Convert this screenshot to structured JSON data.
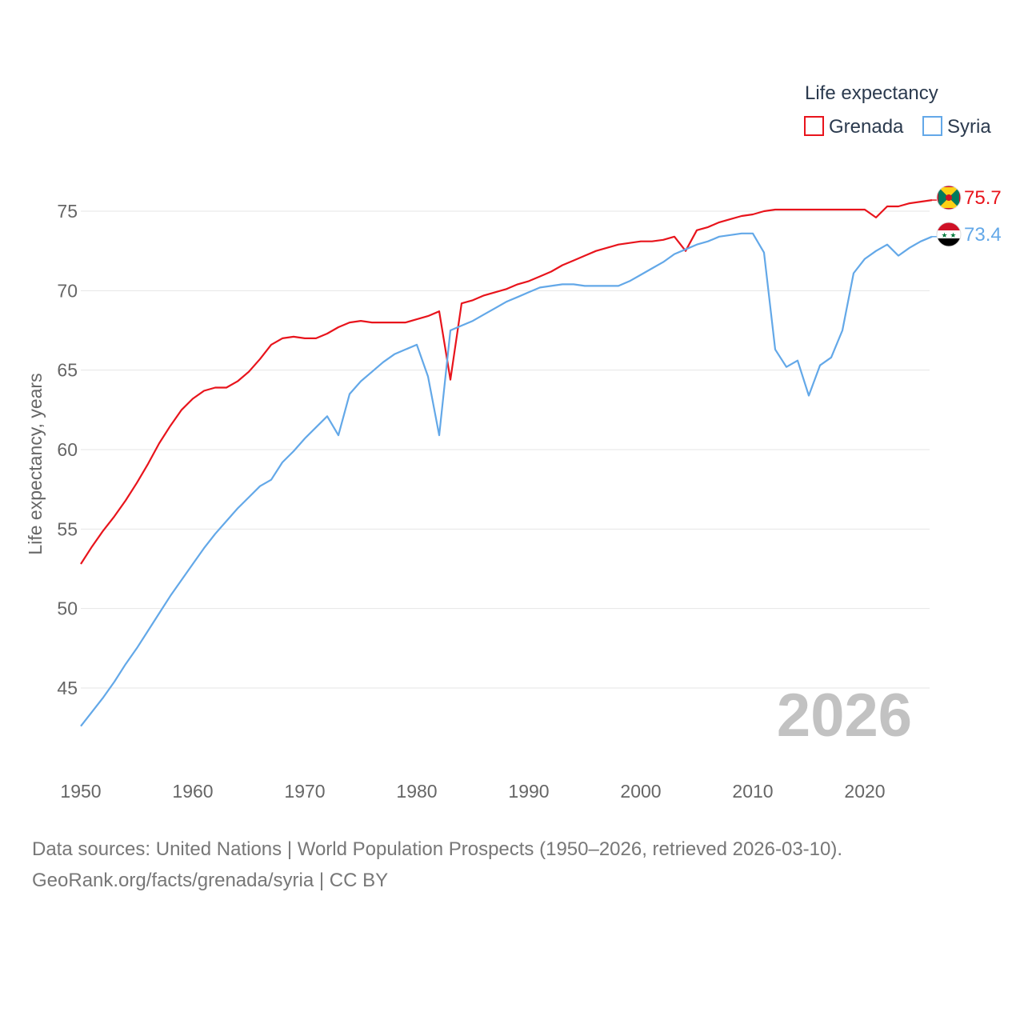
{
  "chart_data": {
    "type": "line",
    "legend_title": "Life expectancy",
    "ylabel": "Life expectancy, years",
    "xlabel": "",
    "xlim": [
      1950,
      2026
    ],
    "ylim": [
      41.5,
      77.5
    ],
    "yticks": [
      45,
      50,
      55,
      60,
      65,
      70,
      75
    ],
    "xticks": [
      1950,
      1960,
      1970,
      1980,
      1990,
      2000,
      2010,
      2020
    ],
    "year_label": "2026",
    "legend_position": "top-right",
    "x": [
      1950,
      1951,
      1952,
      1953,
      1954,
      1955,
      1956,
      1957,
      1958,
      1959,
      1960,
      1961,
      1962,
      1963,
      1964,
      1965,
      1966,
      1967,
      1968,
      1969,
      1970,
      1971,
      1972,
      1973,
      1974,
      1975,
      1976,
      1977,
      1978,
      1979,
      1980,
      1981,
      1982,
      1983,
      1984,
      1985,
      1986,
      1987,
      1988,
      1989,
      1990,
      1991,
      1992,
      1993,
      1994,
      1995,
      1996,
      1997,
      1998,
      1999,
      2000,
      2001,
      2002,
      2003,
      2004,
      2005,
      2006,
      2007,
      2008,
      2009,
      2010,
      2011,
      2012,
      2013,
      2014,
      2015,
      2016,
      2017,
      2018,
      2019,
      2020,
      2021,
      2022,
      2023,
      2024,
      2025,
      2026
    ],
    "series": [
      {
        "name": "Grenada",
        "color": "#e8141c",
        "end_value": "75.7",
        "values": [
          52.8,
          53.9,
          54.9,
          55.8,
          56.8,
          57.9,
          59.1,
          60.4,
          61.5,
          62.5,
          63.2,
          63.7,
          63.9,
          63.9,
          64.3,
          64.9,
          65.7,
          66.6,
          67.0,
          67.1,
          67.0,
          67.0,
          67.3,
          67.7,
          68.0,
          68.1,
          68.0,
          68.0,
          68.0,
          68.0,
          68.2,
          68.4,
          68.7,
          64.4,
          69.2,
          69.4,
          69.7,
          69.9,
          70.1,
          70.4,
          70.6,
          70.9,
          71.2,
          71.6,
          71.9,
          72.2,
          72.5,
          72.7,
          72.9,
          73.0,
          73.1,
          73.1,
          73.2,
          73.4,
          72.5,
          73.8,
          74.0,
          74.3,
          74.5,
          74.7,
          74.8,
          75.0,
          75.1,
          75.1,
          75.1,
          75.1,
          75.1,
          75.1,
          75.1,
          75.1,
          75.1,
          74.6,
          75.3,
          75.3,
          75.5,
          75.6,
          75.7
        ]
      },
      {
        "name": "Syria",
        "color": "#63a8e8",
        "end_value": "73.4",
        "values": [
          42.6,
          43.5,
          44.4,
          45.4,
          46.5,
          47.5,
          48.6,
          49.7,
          50.8,
          51.8,
          52.8,
          53.8,
          54.7,
          55.5,
          56.3,
          57.0,
          57.7,
          58.1,
          59.2,
          59.9,
          60.7,
          61.4,
          62.1,
          60.9,
          63.5,
          64.3,
          64.9,
          65.5,
          66.0,
          66.3,
          66.6,
          64.6,
          60.9,
          67.5,
          67.8,
          68.1,
          68.5,
          68.9,
          69.3,
          69.6,
          69.9,
          70.2,
          70.3,
          70.4,
          70.4,
          70.3,
          70.3,
          70.3,
          70.3,
          70.6,
          71.0,
          71.4,
          71.8,
          72.3,
          72.6,
          72.9,
          73.1,
          73.4,
          73.5,
          73.6,
          73.6,
          72.4,
          66.3,
          65.2,
          65.6,
          63.4,
          65.3,
          65.8,
          67.5,
          71.1,
          72.0,
          72.5,
          72.9,
          72.2,
          72.7,
          73.1,
          73.4
        ]
      }
    ]
  },
  "source": {
    "line1": "Data sources: United Nations | World Population Prospects (1950–2026, retrieved 2026-03-10).",
    "line2": "GeoRank.org/facts/grenada/syria | CC BY"
  }
}
